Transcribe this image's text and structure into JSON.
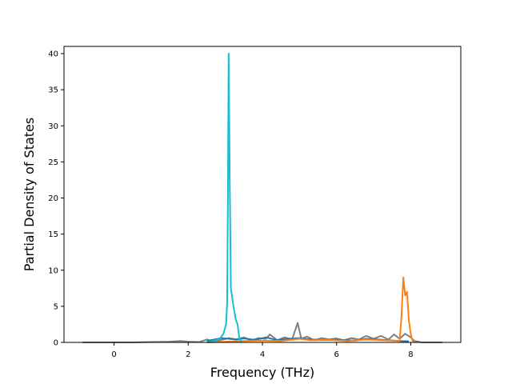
{
  "chart_data": {
    "type": "line",
    "title": "",
    "xlabel": "Frequency (THz)",
    "ylabel": "Partial Density of States",
    "xlim": [
      -1.35,
      9.35
    ],
    "ylim": [
      0,
      41
    ],
    "xticks": [
      0,
      2,
      4,
      6,
      8
    ],
    "yticks": [
      0,
      5,
      10,
      15,
      20,
      25,
      30,
      35,
      40
    ],
    "grid": false,
    "legend": "none",
    "series": [
      {
        "color": "#7f7f7f",
        "points": [
          [
            -0.85,
            0
          ],
          [
            0.5,
            0
          ],
          [
            1.0,
            0.05
          ],
          [
            1.5,
            0.1
          ],
          [
            1.8,
            0.2
          ],
          [
            2.0,
            0.1
          ],
          [
            2.3,
            0.05
          ],
          [
            2.5,
            0.4
          ],
          [
            2.7,
            0.15
          ],
          [
            2.9,
            0.35
          ],
          [
            3.1,
            0.6
          ],
          [
            3.3,
            0.4
          ],
          [
            3.5,
            0.7
          ],
          [
            3.7,
            0.3
          ],
          [
            3.9,
            0.6
          ],
          [
            4.1,
            0.5
          ],
          [
            4.2,
            1.1
          ],
          [
            4.4,
            0.3
          ],
          [
            4.6,
            0.7
          ],
          [
            4.8,
            0.4
          ],
          [
            4.95,
            2.7
          ],
          [
            5.05,
            0.5
          ],
          [
            5.2,
            0.8
          ],
          [
            5.4,
            0.3
          ],
          [
            5.6,
            0.6
          ],
          [
            5.8,
            0.4
          ],
          [
            6.0,
            0.55
          ],
          [
            6.2,
            0.3
          ],
          [
            6.4,
            0.6
          ],
          [
            6.6,
            0.4
          ],
          [
            6.8,
            0.9
          ],
          [
            7.0,
            0.5
          ],
          [
            7.2,
            0.9
          ],
          [
            7.4,
            0.4
          ],
          [
            7.55,
            1.1
          ],
          [
            7.7,
            0.5
          ],
          [
            7.85,
            1.2
          ],
          [
            8.0,
            0.7
          ],
          [
            8.1,
            0.2
          ],
          [
            8.3,
            0
          ],
          [
            8.85,
            0
          ]
        ]
      },
      {
        "color": "#1f77b4",
        "points": [
          [
            2.5,
            0.2
          ],
          [
            2.9,
            0.6
          ],
          [
            3.1,
            0.5
          ],
          [
            3.3,
            0.4
          ],
          [
            3.5,
            0.55
          ],
          [
            3.8,
            0.35
          ],
          [
            4.1,
            0.7
          ],
          [
            4.4,
            0.3
          ],
          [
            4.7,
            0.5
          ],
          [
            5.0,
            0.6
          ],
          [
            5.3,
            0.4
          ],
          [
            5.6,
            0.35
          ],
          [
            5.9,
            0.4
          ],
          [
            6.2,
            0.3
          ],
          [
            6.5,
            0.25
          ],
          [
            6.8,
            0.5
          ],
          [
            7.1,
            0.4
          ],
          [
            7.4,
            0.3
          ],
          [
            7.7,
            0.2
          ],
          [
            7.95,
            0.15
          ]
        ]
      },
      {
        "color": "#ff7f0e",
        "points": [
          [
            2.5,
            0
          ],
          [
            3.0,
            0.1
          ],
          [
            3.5,
            0.2
          ],
          [
            4.0,
            0.25
          ],
          [
            4.5,
            0.2
          ],
          [
            5.0,
            0.5
          ],
          [
            5.3,
            0.3
          ],
          [
            5.8,
            0.35
          ],
          [
            6.3,
            0.2
          ],
          [
            6.8,
            0.4
          ],
          [
            7.2,
            0.3
          ],
          [
            7.5,
            0.25
          ],
          [
            7.7,
            0.2
          ],
          [
            7.75,
            3.5
          ],
          [
            7.8,
            9.0
          ],
          [
            7.85,
            6.5
          ],
          [
            7.9,
            7.0
          ],
          [
            7.95,
            3.0
          ],
          [
            8.0,
            1.2
          ],
          [
            8.05,
            0.2
          ],
          [
            8.1,
            0
          ]
        ]
      },
      {
        "color": "#17becf",
        "points": [
          [
            2.5,
            0
          ],
          [
            2.7,
            0.2
          ],
          [
            2.85,
            0.5
          ],
          [
            2.95,
            1.2
          ],
          [
            3.02,
            2.5
          ],
          [
            3.05,
            5.5
          ],
          [
            3.07,
            20
          ],
          [
            3.09,
            40
          ],
          [
            3.12,
            22
          ],
          [
            3.15,
            7.5
          ],
          [
            3.22,
            5
          ],
          [
            3.28,
            3.2
          ],
          [
            3.33,
            2.5
          ],
          [
            3.38,
            0.5
          ],
          [
            3.45,
            0
          ]
        ]
      }
    ]
  }
}
